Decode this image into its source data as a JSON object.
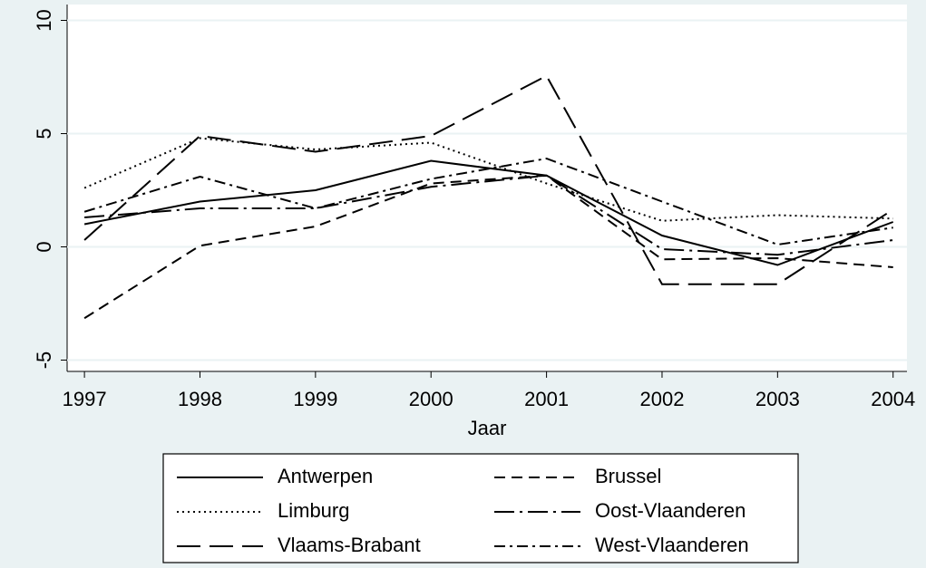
{
  "chart_data": {
    "type": "line",
    "x_label": "Jaar",
    "x": [
      1997,
      1998,
      1999,
      2000,
      2001,
      2002,
      2003,
      2004
    ],
    "xlim": [
      1996.85,
      2004.12
    ],
    "xticks": [
      1997,
      1998,
      1999,
      2000,
      2001,
      2002,
      2003,
      2004
    ],
    "ylim": [
      -5.5,
      10.7
    ],
    "yticks": [
      -5,
      0,
      5,
      10
    ],
    "grid": true,
    "legend_position": "bottom",
    "series": [
      {
        "name": "Antwerpen",
        "color": "#000000",
        "dash": "none",
        "values": [
          1.0,
          2.0,
          2.5,
          3.8,
          3.15,
          0.5,
          -0.8,
          1.1
        ]
      },
      {
        "name": "Brussel",
        "color": "#000000",
        "dash": "12 7",
        "values": [
          -3.15,
          0.05,
          0.9,
          2.8,
          3.15,
          -0.55,
          -0.5,
          -0.9
        ]
      },
      {
        "name": "Limburg",
        "color": "#000000",
        "dash": "2 4",
        "values": [
          2.6,
          4.8,
          4.3,
          4.6,
          2.8,
          1.15,
          1.4,
          1.25
        ]
      },
      {
        "name": "Oost-Vlaanderen",
        "color": "#000000",
        "dash": "22 6 3 6",
        "values": [
          1.3,
          1.7,
          1.7,
          2.65,
          3.15,
          -0.1,
          -0.35,
          0.3
        ]
      },
      {
        "name": "Vlaams-Brabant",
        "color": "#000000",
        "dash": "26 10",
        "values": [
          0.3,
          4.9,
          4.2,
          4.9,
          7.55,
          -1.65,
          -1.65,
          1.65
        ]
      },
      {
        "name": "West-Vlaanderen",
        "color": "#000000",
        "dash": "12 5 3 5",
        "values": [
          1.55,
          3.1,
          1.7,
          3.0,
          3.9,
          2.0,
          0.1,
          0.85
        ]
      }
    ]
  }
}
